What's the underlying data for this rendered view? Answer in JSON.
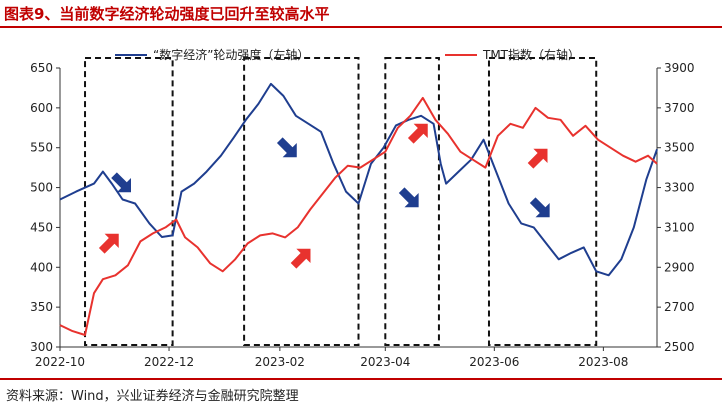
{
  "header": {
    "title": "图表9、当前数字经济轮动强度已回升至较高水平"
  },
  "footer": {
    "source": "资料来源：Wind，兴业证券经济与金融研究院整理"
  },
  "chart_data": {
    "type": "line",
    "x_ticks": [
      "2022-10",
      "2022-12",
      "2023-02",
      "2023-04",
      "2023-06",
      "2023-08"
    ],
    "x_range": [
      "2022-10-01",
      "2023-08-31"
    ],
    "y_left": {
      "ticks": [
        300,
        350,
        400,
        450,
        500,
        550,
        600,
        650
      ],
      "ylim": [
        300,
        650
      ]
    },
    "y_right": {
      "ticks": [
        2500,
        2700,
        2900,
        3100,
        3300,
        3500,
        3700,
        3900
      ],
      "ylim": [
        2500,
        3900
      ]
    },
    "legend_position": "top",
    "series": [
      {
        "name": "“数字经济”轮动强度（左轴）",
        "axis": "left",
        "color": "#1f3e8f",
        "points": [
          [
            "2022-10-01",
            485
          ],
          [
            "2022-10-10",
            495
          ],
          [
            "2022-10-20",
            505
          ],
          [
            "2022-10-25",
            520
          ],
          [
            "2022-10-30",
            505
          ],
          [
            "2022-11-05",
            485
          ],
          [
            "2022-11-12",
            480
          ],
          [
            "2022-11-20",
            455
          ],
          [
            "2022-11-27",
            438
          ],
          [
            "2022-12-03",
            440
          ],
          [
            "2022-12-08",
            495
          ],
          [
            "2022-12-15",
            505
          ],
          [
            "2022-12-22",
            520
          ],
          [
            "2022-12-30",
            540
          ],
          [
            "2023-01-06",
            562
          ],
          [
            "2023-01-13",
            585
          ],
          [
            "2023-01-20",
            605
          ],
          [
            "2023-01-27",
            630
          ],
          [
            "2023-02-03",
            615
          ],
          [
            "2023-02-10",
            590
          ],
          [
            "2023-02-17",
            580
          ],
          [
            "2023-02-24",
            570
          ],
          [
            "2023-03-03",
            530
          ],
          [
            "2023-03-10",
            495
          ],
          [
            "2023-03-17",
            480
          ],
          [
            "2023-03-24",
            530
          ],
          [
            "2023-03-31",
            550
          ],
          [
            "2023-04-07",
            578
          ],
          [
            "2023-04-14",
            585
          ],
          [
            "2023-04-21",
            590
          ],
          [
            "2023-04-28",
            580
          ],
          [
            "2023-05-02",
            530
          ],
          [
            "2023-05-05",
            505
          ],
          [
            "2023-05-12",
            520
          ],
          [
            "2023-05-19",
            535
          ],
          [
            "2023-05-26",
            560
          ],
          [
            "2023-06-02",
            520
          ],
          [
            "2023-06-09",
            480
          ],
          [
            "2023-06-16",
            455
          ],
          [
            "2023-06-23",
            450
          ],
          [
            "2023-06-30",
            430
          ],
          [
            "2023-07-07",
            410
          ],
          [
            "2023-07-14",
            418
          ],
          [
            "2023-07-21",
            425
          ],
          [
            "2023-07-28",
            395
          ],
          [
            "2023-08-04",
            390
          ],
          [
            "2023-08-11",
            410
          ],
          [
            "2023-08-18",
            450
          ],
          [
            "2023-08-25",
            510
          ],
          [
            "2023-08-31",
            548
          ]
        ]
      },
      {
        "name": "TMT指数（右轴）",
        "axis": "right",
        "color": "#e8322e",
        "points": [
          [
            "2022-10-01",
            2610
          ],
          [
            "2022-10-08",
            2580
          ],
          [
            "2022-10-15",
            2560
          ],
          [
            "2022-10-20",
            2770
          ],
          [
            "2022-10-25",
            2840
          ],
          [
            "2022-11-01",
            2860
          ],
          [
            "2022-11-08",
            2910
          ],
          [
            "2022-11-15",
            3030
          ],
          [
            "2022-11-22",
            3070
          ],
          [
            "2022-11-29",
            3100
          ],
          [
            "2022-12-05",
            3140
          ],
          [
            "2022-12-10",
            3050
          ],
          [
            "2022-12-17",
            3000
          ],
          [
            "2022-12-24",
            2920
          ],
          [
            "2022-12-31",
            2880
          ],
          [
            "2023-01-07",
            2940
          ],
          [
            "2023-01-14",
            3020
          ],
          [
            "2023-01-21",
            3060
          ],
          [
            "2023-01-28",
            3070
          ],
          [
            "2023-02-04",
            3050
          ],
          [
            "2023-02-11",
            3100
          ],
          [
            "2023-02-18",
            3190
          ],
          [
            "2023-02-25",
            3270
          ],
          [
            "2023-03-04",
            3350
          ],
          [
            "2023-03-11",
            3410
          ],
          [
            "2023-03-18",
            3400
          ],
          [
            "2023-03-25",
            3440
          ],
          [
            "2023-04-01",
            3480
          ],
          [
            "2023-04-08",
            3600
          ],
          [
            "2023-04-15",
            3660
          ],
          [
            "2023-04-22",
            3750
          ],
          [
            "2023-04-29",
            3640
          ],
          [
            "2023-05-06",
            3570
          ],
          [
            "2023-05-13",
            3480
          ],
          [
            "2023-05-20",
            3440
          ],
          [
            "2023-05-27",
            3400
          ],
          [
            "2023-06-03",
            3560
          ],
          [
            "2023-06-10",
            3620
          ],
          [
            "2023-06-17",
            3600
          ],
          [
            "2023-06-24",
            3700
          ],
          [
            "2023-07-01",
            3650
          ],
          [
            "2023-07-08",
            3640
          ],
          [
            "2023-07-15",
            3560
          ],
          [
            "2023-07-22",
            3610
          ],
          [
            "2023-07-29",
            3540
          ],
          [
            "2023-08-05",
            3500
          ],
          [
            "2023-08-12",
            3460
          ],
          [
            "2023-08-19",
            3430
          ],
          [
            "2023-08-26",
            3460
          ],
          [
            "2023-08-31",
            3420
          ]
        ]
      }
    ],
    "highlight_boxes": [
      {
        "from": "2022-10-15",
        "to": "2022-12-03",
        "arrows": [
          {
            "color": "#1f3e8f",
            "direction": "down"
          },
          {
            "color": "#e8322e",
            "direction": "up"
          }
        ]
      },
      {
        "from": "2023-01-12",
        "to": "2023-03-17",
        "arrows": [
          {
            "color": "#1f3e8f",
            "direction": "down"
          },
          {
            "color": "#e8322e",
            "direction": "up"
          }
        ]
      },
      {
        "from": "2023-04-01",
        "to": "2023-05-01",
        "arrows": [
          {
            "color": "#1f3e8f",
            "direction": "down"
          },
          {
            "color": "#e8322e",
            "direction": "up"
          }
        ]
      },
      {
        "from": "2023-05-29",
        "to": "2023-07-28",
        "arrows": [
          {
            "color": "#1f3e8f",
            "direction": "down"
          },
          {
            "color": "#e8322e",
            "direction": "up"
          }
        ]
      }
    ]
  }
}
